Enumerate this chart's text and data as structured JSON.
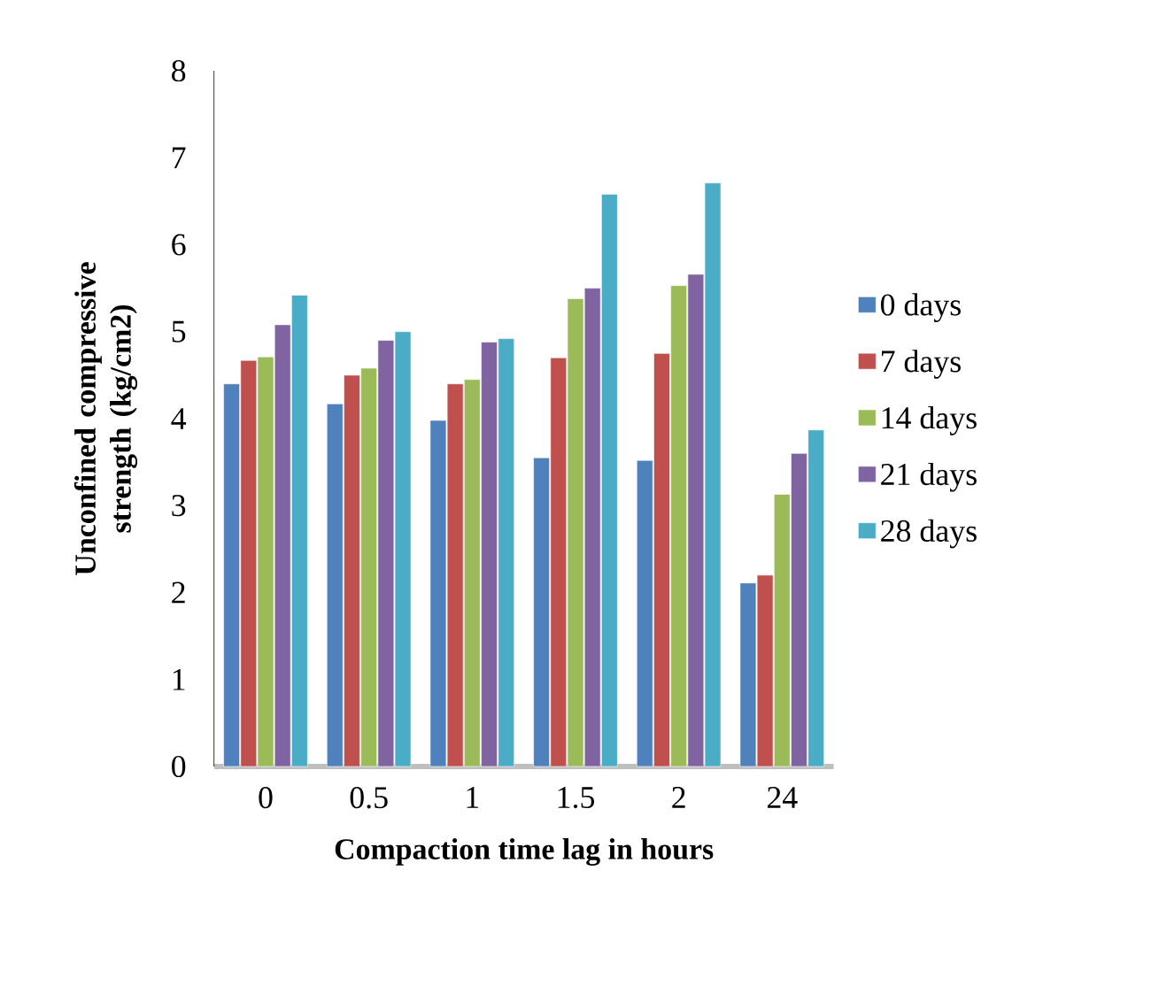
{
  "chart_data": {
    "type": "bar",
    "xlabel": "Compaction time lag in hours",
    "ylabel": "Unconfined compressive strength (kg/cm2)",
    "categories": [
      "0",
      "0.5",
      "1",
      "1.5",
      "2",
      "24"
    ],
    "series": [
      {
        "name": "0 days",
        "color": "#4f81bd",
        "values": [
          4.4,
          4.17,
          3.98,
          3.55,
          3.52,
          2.11
        ]
      },
      {
        "name": "7 days",
        "color": "#c0504d",
        "values": [
          4.67,
          4.5,
          4.4,
          4.7,
          4.75,
          2.2
        ]
      },
      {
        "name": "14 days",
        "color": "#9bbb59",
        "values": [
          4.71,
          4.58,
          4.45,
          5.38,
          5.53,
          3.13
        ]
      },
      {
        "name": "21 days",
        "color": "#8064a2",
        "values": [
          5.08,
          4.9,
          4.88,
          5.5,
          5.66,
          3.6
        ]
      },
      {
        "name": "28 days",
        "color": "#4bacc6",
        "values": [
          5.42,
          5.0,
          4.92,
          6.58,
          6.71,
          3.87
        ]
      }
    ],
    "ylim": [
      0,
      8
    ],
    "yticks": [
      0,
      1,
      2,
      3,
      4,
      5,
      6,
      7,
      8
    ],
    "legend": "right"
  }
}
